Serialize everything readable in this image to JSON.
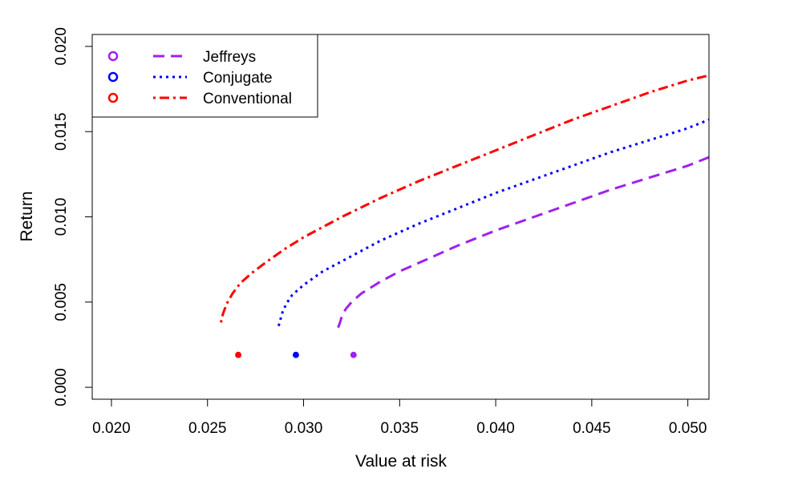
{
  "chart_data": {
    "type": "line",
    "title": "",
    "xlabel": "Value at risk",
    "ylabel": "Return",
    "xlim": [
      0.019,
      0.0511
    ],
    "ylim": [
      -0.0007,
      0.0207
    ],
    "x_ticks": [
      "0.020",
      "0.025",
      "0.030",
      "0.035",
      "0.040",
      "0.045",
      "0.050"
    ],
    "y_ticks": [
      "0.000",
      "0.005",
      "0.010",
      "0.015",
      "0.020"
    ],
    "legend_position": "top-left",
    "series": [
      {
        "name": "Jeffreys",
        "color": "#a020f0",
        "dash": "longdash",
        "x": [
          0.0318,
          0.0319,
          0.032,
          0.0322,
          0.0325,
          0.033,
          0.034,
          0.035,
          0.036,
          0.038,
          0.04,
          0.042,
          0.044,
          0.046,
          0.048,
          0.05,
          0.0511
        ],
        "y": [
          0.0035,
          0.0038,
          0.0042,
          0.0046,
          0.005,
          0.0055,
          0.0062,
          0.0068,
          0.0073,
          0.0083,
          0.0092,
          0.01,
          0.0108,
          0.0116,
          0.0123,
          0.013,
          0.0135
        ],
        "point": {
          "x": 0.0326,
          "y": 0.0019
        }
      },
      {
        "name": "Conjugate",
        "color": "#0000ff",
        "dash": "dotted",
        "x": [
          0.0287,
          0.0288,
          0.0289,
          0.0291,
          0.0294,
          0.03,
          0.031,
          0.032,
          0.034,
          0.036,
          0.038,
          0.04,
          0.042,
          0.044,
          0.046,
          0.048,
          0.05,
          0.0511
        ],
        "y": [
          0.0036,
          0.004,
          0.0044,
          0.0049,
          0.0054,
          0.006,
          0.0068,
          0.0074,
          0.0086,
          0.0096,
          0.0105,
          0.0114,
          0.0122,
          0.013,
          0.0138,
          0.0145,
          0.0152,
          0.0157
        ],
        "point": {
          "x": 0.0296,
          "y": 0.0019
        }
      },
      {
        "name": "Conventional",
        "color": "#ff0000",
        "dash": "dotdash",
        "x": [
          0.0257,
          0.0258,
          0.026,
          0.0263,
          0.0267,
          0.0273,
          0.028,
          0.029,
          0.03,
          0.032,
          0.034,
          0.036,
          0.038,
          0.04,
          0.042,
          0.044,
          0.046,
          0.048,
          0.05,
          0.0511
        ],
        "y": [
          0.0038,
          0.0043,
          0.0049,
          0.0055,
          0.0061,
          0.0067,
          0.0073,
          0.0081,
          0.0088,
          0.01,
          0.0111,
          0.0121,
          0.013,
          0.0139,
          0.0148,
          0.0157,
          0.0165,
          0.0173,
          0.018,
          0.0183
        ],
        "point": {
          "x": 0.0266,
          "y": 0.0019
        }
      }
    ],
    "legend": [
      "Jeffreys",
      "Conjugate",
      "Conventional"
    ]
  }
}
